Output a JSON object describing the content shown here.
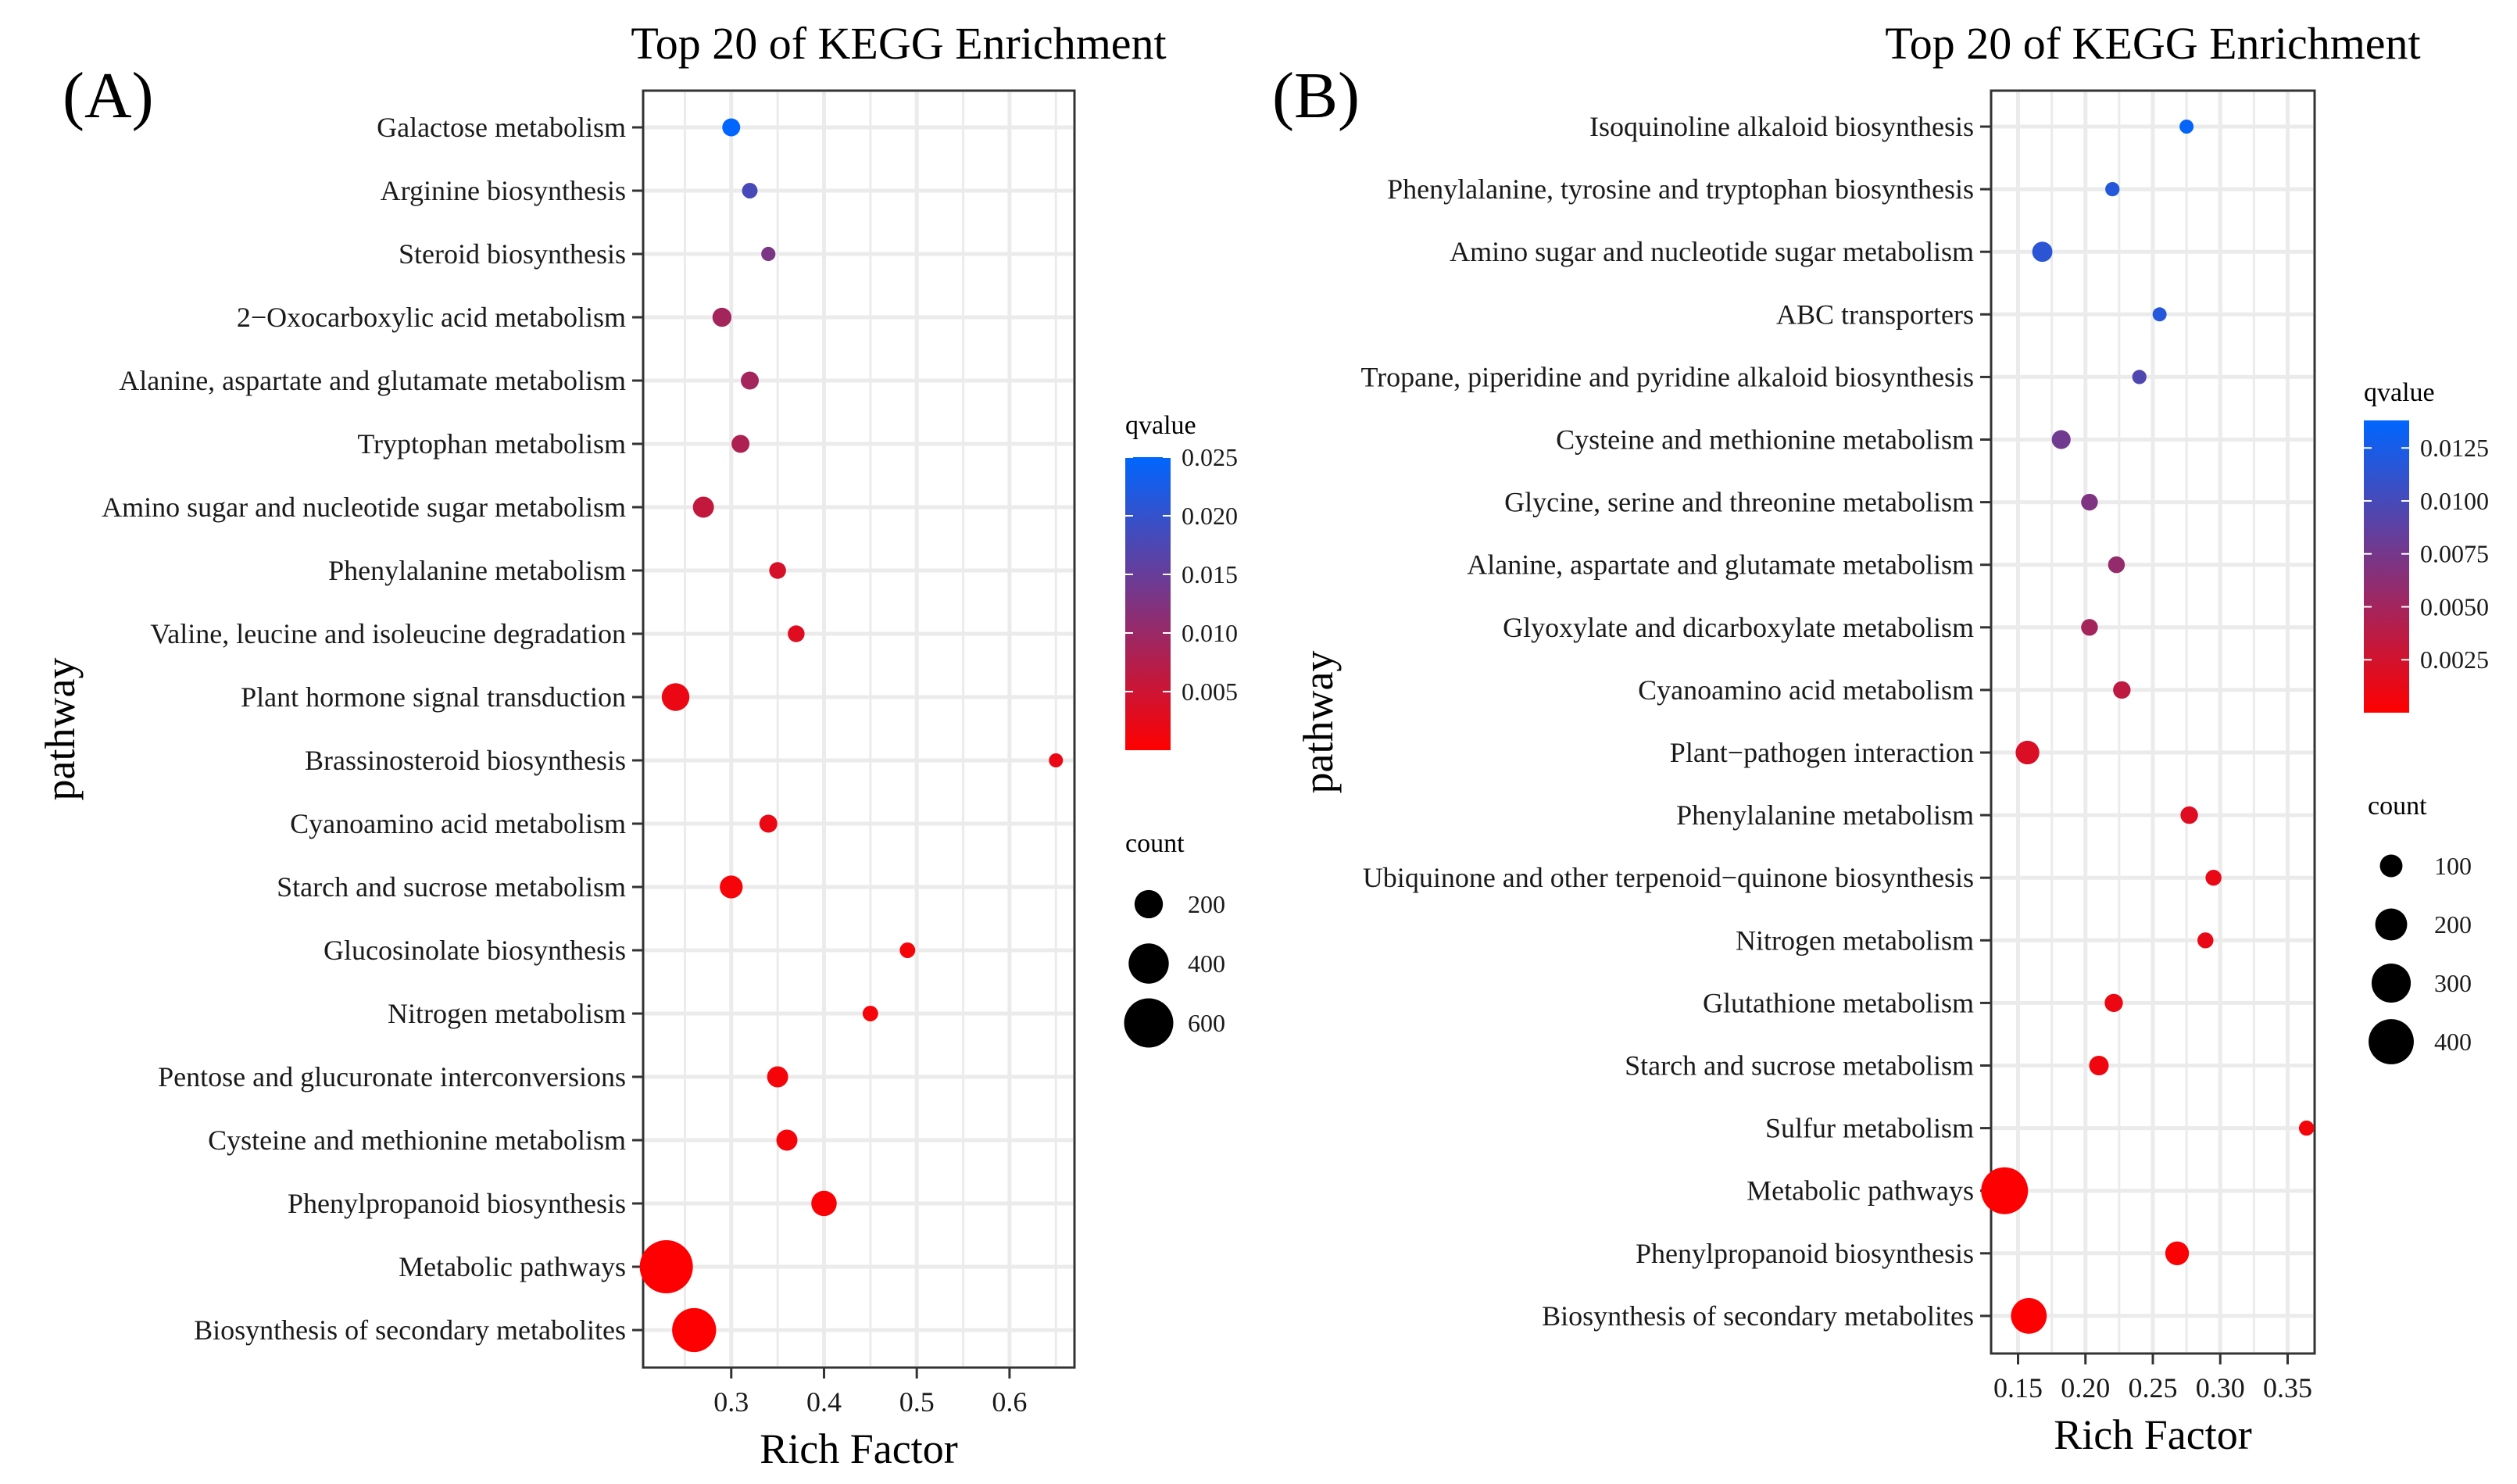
{
  "chart_data": [
    {
      "type": "scatter",
      "panel_label": "(A)",
      "title": "Top 20 of KEGG Enrichment",
      "xlabel": "Rich Factor",
      "ylabel": "pathway",
      "xlim": [
        0.205,
        0.67
      ],
      "xticks": [
        0.3,
        0.4,
        0.5,
        0.6
      ],
      "xtick_labels": [
        "0.3",
        "0.4",
        "0.5",
        "0.6"
      ],
      "grid": true,
      "categories": [
        "Galactose metabolism",
        "Arginine biosynthesis",
        "Steroid biosynthesis",
        "2−Oxocarboxylic acid metabolism",
        "Alanine, aspartate and glutamate metabolism",
        "Tryptophan metabolism",
        "Amino sugar and nucleotide sugar metabolism",
        "Phenylalanine metabolism",
        "Valine, leucine and isoleucine degradation",
        "Plant hormone signal transduction",
        "Brassinosteroid biosynthesis",
        "Cyanoamino acid metabolism",
        "Starch and sucrose metabolism",
        "Glucosinolate biosynthesis",
        "Nitrogen metabolism",
        "Pentose and glucuronate interconversions",
        "Cysteine and methionine metabolism",
        "Phenylpropanoid biosynthesis",
        "Metabolic pathways",
        "Biosynthesis of secondary metabolites"
      ],
      "points": [
        {
          "category": "Galactose metabolism",
          "x": 0.3,
          "qvalue": 0.025,
          "count": 80
        },
        {
          "category": "Arginine biosynthesis",
          "x": 0.32,
          "qvalue": 0.018,
          "count": 60
        },
        {
          "category": "Steroid biosynthesis",
          "x": 0.34,
          "qvalue": 0.013,
          "count": 50
        },
        {
          "category": "2−Oxocarboxylic acid metabolism",
          "x": 0.29,
          "qvalue": 0.009,
          "count": 90
        },
        {
          "category": "Alanine, aspartate and glutamate metabolism",
          "x": 0.32,
          "qvalue": 0.009,
          "count": 80
        },
        {
          "category": "Tryptophan metabolism",
          "x": 0.31,
          "qvalue": 0.008,
          "count": 80
        },
        {
          "category": "Amino sugar and nucleotide sugar metabolism",
          "x": 0.27,
          "qvalue": 0.006,
          "count": 110
        },
        {
          "category": "Phenylalanine metabolism",
          "x": 0.35,
          "qvalue": 0.004,
          "count": 70
        },
        {
          "category": "Valine, leucine and isoleucine degradation",
          "x": 0.37,
          "qvalue": 0.003,
          "count": 70
        },
        {
          "category": "Plant hormone signal transduction",
          "x": 0.24,
          "qvalue": 0.002,
          "count": 190
        },
        {
          "category": "Brassinosteroid biosynthesis",
          "x": 0.65,
          "qvalue": 0.002,
          "count": 20
        },
        {
          "category": "Cyanoamino acid metabolism",
          "x": 0.34,
          "qvalue": 0.002,
          "count": 80
        },
        {
          "category": "Starch and sucrose metabolism",
          "x": 0.3,
          "qvalue": 0.001,
          "count": 130
        },
        {
          "category": "Glucosinolate biosynthesis",
          "x": 0.49,
          "qvalue": 0.001,
          "count": 60
        },
        {
          "category": "Nitrogen metabolism",
          "x": 0.45,
          "qvalue": 0.001,
          "count": 60
        },
        {
          "category": "Pentose and glucuronate interconversions",
          "x": 0.35,
          "qvalue": 0.001,
          "count": 110
        },
        {
          "category": "Cysteine and methionine metabolism",
          "x": 0.36,
          "qvalue": 0.001,
          "count": 110
        },
        {
          "category": "Phenylpropanoid biosynthesis",
          "x": 0.4,
          "qvalue": 0.0005,
          "count": 160
        },
        {
          "category": "Metabolic pathways",
          "x": 0.23,
          "qvalue": 0.0001,
          "count": 700
        },
        {
          "category": "Biosynthesis of secondary metabolites",
          "x": 0.26,
          "qvalue": 0.0001,
          "count": 480
        }
      ],
      "color_legend": {
        "title": "qvalue",
        "min": 0.0,
        "max": 0.025,
        "ticks": [
          0.005,
          0.01,
          0.015,
          0.02,
          0.025
        ],
        "tick_labels": [
          "0.005",
          "0.010",
          "0.015",
          "0.020",
          "0.025"
        ],
        "low_color": "#ff0000",
        "high_color": "#0066ff"
      },
      "size_legend": {
        "title": "count",
        "values": [
          200,
          400,
          600
        ],
        "labels": [
          "200",
          "400",
          "600"
        ],
        "max_count": 700
      }
    },
    {
      "type": "scatter",
      "panel_label": "(B)",
      "title": "Top 20 of KEGG Enrichment",
      "xlabel": "Rich Factor",
      "ylabel": "pathway",
      "xlim": [
        0.13,
        0.37
      ],
      "xticks": [
        0.15,
        0.2,
        0.25,
        0.3,
        0.35
      ],
      "xtick_labels": [
        "0.15",
        "0.20",
        "0.25",
        "0.30",
        "0.35"
      ],
      "grid": true,
      "categories": [
        "Isoquinoline alkaloid biosynthesis",
        "Phenylalanine, tyrosine and tryptophan biosynthesis",
        "Amino sugar and nucleotide sugar metabolism",
        "ABC transporters",
        "Tropane, piperidine and pyridine alkaloid biosynthesis",
        "Cysteine and methionine metabolism",
        "Glycine, serine and threonine metabolism",
        "Alanine, aspartate and glutamate metabolism",
        "Glyoxylate and dicarboxylate metabolism",
        "Cyanoamino acid metabolism",
        "Plant−pathogen interaction",
        "Phenylalanine metabolism",
        "Ubiquinone and other terpenoid−quinone biosynthesis",
        "Nitrogen metabolism",
        "Glutathione metabolism",
        "Starch and sucrose metabolism",
        "Sulfur metabolism",
        "Metabolic pathways",
        "Phenylpropanoid biosynthesis",
        "Biosynthesis of secondary metabolites"
      ],
      "points": [
        {
          "category": "Isoquinoline alkaloid biosynthesis",
          "x": 0.275,
          "qvalue": 0.0135,
          "count": 30
        },
        {
          "category": "Phenylalanine, tyrosine and tryptophan biosynthesis",
          "x": 0.22,
          "qvalue": 0.0118,
          "count": 40
        },
        {
          "category": "Amino sugar and nucleotide sugar metabolism",
          "x": 0.168,
          "qvalue": 0.0115,
          "count": 80
        },
        {
          "category": "ABC transporters",
          "x": 0.255,
          "qvalue": 0.0118,
          "count": 30
        },
        {
          "category": "Tropane, piperidine and pyridine alkaloid biosynthesis",
          "x": 0.24,
          "qvalue": 0.0095,
          "count": 40
        },
        {
          "category": "Cysteine and methionine metabolism",
          "x": 0.182,
          "qvalue": 0.0078,
          "count": 70
        },
        {
          "category": "Glycine, serine and threonine metabolism",
          "x": 0.203,
          "qvalue": 0.007,
          "count": 55
        },
        {
          "category": "Alanine, aspartate and glutamate metabolism",
          "x": 0.223,
          "qvalue": 0.0058,
          "count": 55
        },
        {
          "category": "Glyoxylate and dicarboxylate metabolism",
          "x": 0.203,
          "qvalue": 0.005,
          "count": 55
        },
        {
          "category": "Cyanoamino acid metabolism",
          "x": 0.227,
          "qvalue": 0.0035,
          "count": 60
        },
        {
          "category": "Plant−pathogen interaction",
          "x": 0.157,
          "qvalue": 0.002,
          "count": 110
        },
        {
          "category": "Phenylalanine metabolism",
          "x": 0.277,
          "qvalue": 0.0018,
          "count": 60
        },
        {
          "category": "Ubiquinone and other terpenoid−quinone biosynthesis",
          "x": 0.295,
          "qvalue": 0.0012,
          "count": 50
        },
        {
          "category": "Nitrogen metabolism",
          "x": 0.289,
          "qvalue": 0.0012,
          "count": 50
        },
        {
          "category": "Glutathione metabolism",
          "x": 0.221,
          "qvalue": 0.001,
          "count": 65
        },
        {
          "category": "Starch and sucrose metabolism",
          "x": 0.21,
          "qvalue": 0.0008,
          "count": 75
        },
        {
          "category": "Sulfur metabolism",
          "x": 0.364,
          "qvalue": 0.0006,
          "count": 45
        },
        {
          "category": "Metabolic pathways",
          "x": 0.14,
          "qvalue": 0.0001,
          "count": 430
        },
        {
          "category": "Phenylpropanoid biosynthesis",
          "x": 0.268,
          "qvalue": 0.0002,
          "count": 110
        },
        {
          "category": "Biosynthesis of secondary metabolites",
          "x": 0.158,
          "qvalue": 0.0001,
          "count": 250
        }
      ],
      "color_legend": {
        "title": "qvalue",
        "min": 0.0,
        "max": 0.0138,
        "ticks": [
          0.0025,
          0.005,
          0.0075,
          0.01,
          0.0125
        ],
        "tick_labels": [
          "0.0025",
          "0.0050",
          "0.0075",
          "0.0100",
          "0.0125"
        ],
        "low_color": "#ff0000",
        "high_color": "#0066ff"
      },
      "size_legend": {
        "title": "count",
        "values": [
          100,
          200,
          300,
          400
        ],
        "labels": [
          "100",
          "200",
          "300",
          "400"
        ],
        "max_count": 430
      }
    }
  ]
}
